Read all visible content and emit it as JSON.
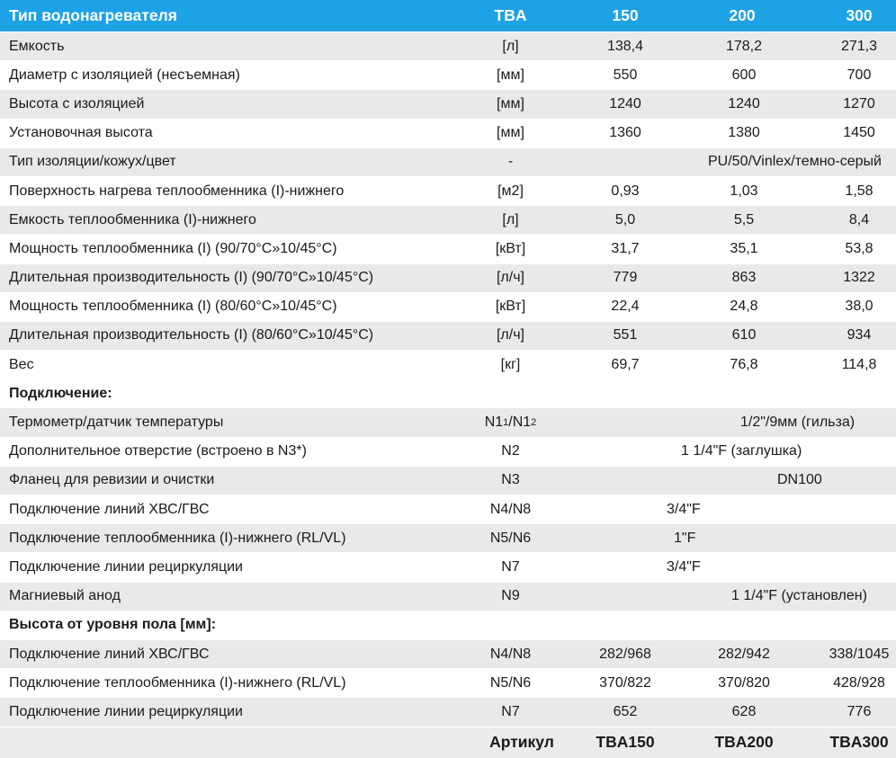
{
  "header": {
    "title": "Тип водонагревателя",
    "col_type": "TBA",
    "col_150": "150",
    "col_200": "200",
    "col_300": "300"
  },
  "rows": [
    {
      "label": "Емкость",
      "unit": "[л]",
      "v150": "138,4",
      "v200": "178,2",
      "v300": "271,3"
    },
    {
      "label": "Диаметр с изоляцией (несъемная)",
      "unit": "[мм]",
      "v150": "550",
      "v200": "600",
      "v300": "700"
    },
    {
      "label": "Высота с изоляцией",
      "unit": "[мм]",
      "v150": "1240",
      "v200": "1240",
      "v300": "1270"
    },
    {
      "label": "Установочная высота",
      "unit": "[мм]",
      "v150": "1360",
      "v200": "1380",
      "v300": "1450"
    },
    {
      "label": "Тип изоляции/кожух/цвет",
      "unit": "-",
      "span": "PU/50/Vinlex/темно-серый"
    },
    {
      "label": "Поверхность нагрева теплообменника (I)-нижнего",
      "unit": "[м2]",
      "v150": "0,93",
      "v200": "1,03",
      "v300": "1,58"
    },
    {
      "label": "Емкость теплообменника (I)-нижнего",
      "unit": "[л]",
      "v150": "5,0",
      "v200": "5,5",
      "v300": "8,4"
    },
    {
      "label": "Мощность теплообменника (I) (90/70°C»10/45°C)",
      "unit": "[кВт]",
      "v150": "31,7",
      "v200": "35,1",
      "v300": "53,8"
    },
    {
      "label": "Длительная производительность (I) (90/70°C»10/45°C)",
      "unit": "[л/ч]",
      "v150": "779",
      "v200": "863",
      "v300": "1322"
    },
    {
      "label": "Мощность теплообменника (I) (80/60°C»10/45°C)",
      "unit": "[кВт]",
      "v150": "22,4",
      "v200": "24,8",
      "v300": "38,0"
    },
    {
      "label": "Длительная производительность (I) (80/60°C»10/45°C)",
      "unit": "[л/ч]",
      "v150": "551",
      "v200": "610",
      "v300": "934"
    },
    {
      "label": "Вес",
      "unit": "[кг]",
      "v150": "69,7",
      "v200": "76,8",
      "v300": "114,8"
    }
  ],
  "section_connections": "Подключение:",
  "connections": [
    {
      "label": "Термометр/датчик температуры",
      "unit_main": "N1",
      "unit_sub1": "1",
      "unit_mid": "/N1",
      "unit_sub2": "2",
      "span": "1/2\"/9мм (гильза)"
    },
    {
      "label": "Дополнительное отверстие (встроено в N3*)",
      "unit": "N2",
      "span": "1 1/4\"F (заглушка)"
    },
    {
      "label": "Фланец для ревизии и очистки",
      "unit": "N3",
      "span": "DN100"
    },
    {
      "label": "Подключение линий ХВС/ГВС",
      "unit": "N4/N8",
      "span": "3/4\"F"
    },
    {
      "label": "Подключение теплообменника (I)-нижнего (RL/VL)",
      "unit": "N5/N6",
      "span": "1\"F"
    },
    {
      "label": "Подключение линии рециркуляции",
      "unit": "N7",
      "span": "3/4\"F"
    },
    {
      "label": "Магниевый анод",
      "unit": "N9",
      "span": "1 1/4\"F (установлен)"
    }
  ],
  "section_heights": "Высота от уровня пола [мм]:",
  "heights": [
    {
      "label": "Подключение линий ХВС/ГВС",
      "unit": "N4/N8",
      "v150": "282/968",
      "v200": "282/942",
      "v300": "338/1045"
    },
    {
      "label": "Подключение теплообменника (I)-нижнего (RL/VL)",
      "unit": "N5/N6",
      "v150": "370/822",
      "v200": "370/820",
      "v300": "428/928"
    },
    {
      "label": "Подключение линии рециркуляции",
      "unit": "N7",
      "v150": "652",
      "v200": "628",
      "v300": "776"
    }
  ],
  "footer": {
    "label": "Артикул",
    "a150": "TBA150",
    "a200": "TBA200",
    "a300": "TBA300"
  },
  "colors": {
    "header_bg": "#1ea2e6",
    "row_shade": "#e9e9e9"
  }
}
